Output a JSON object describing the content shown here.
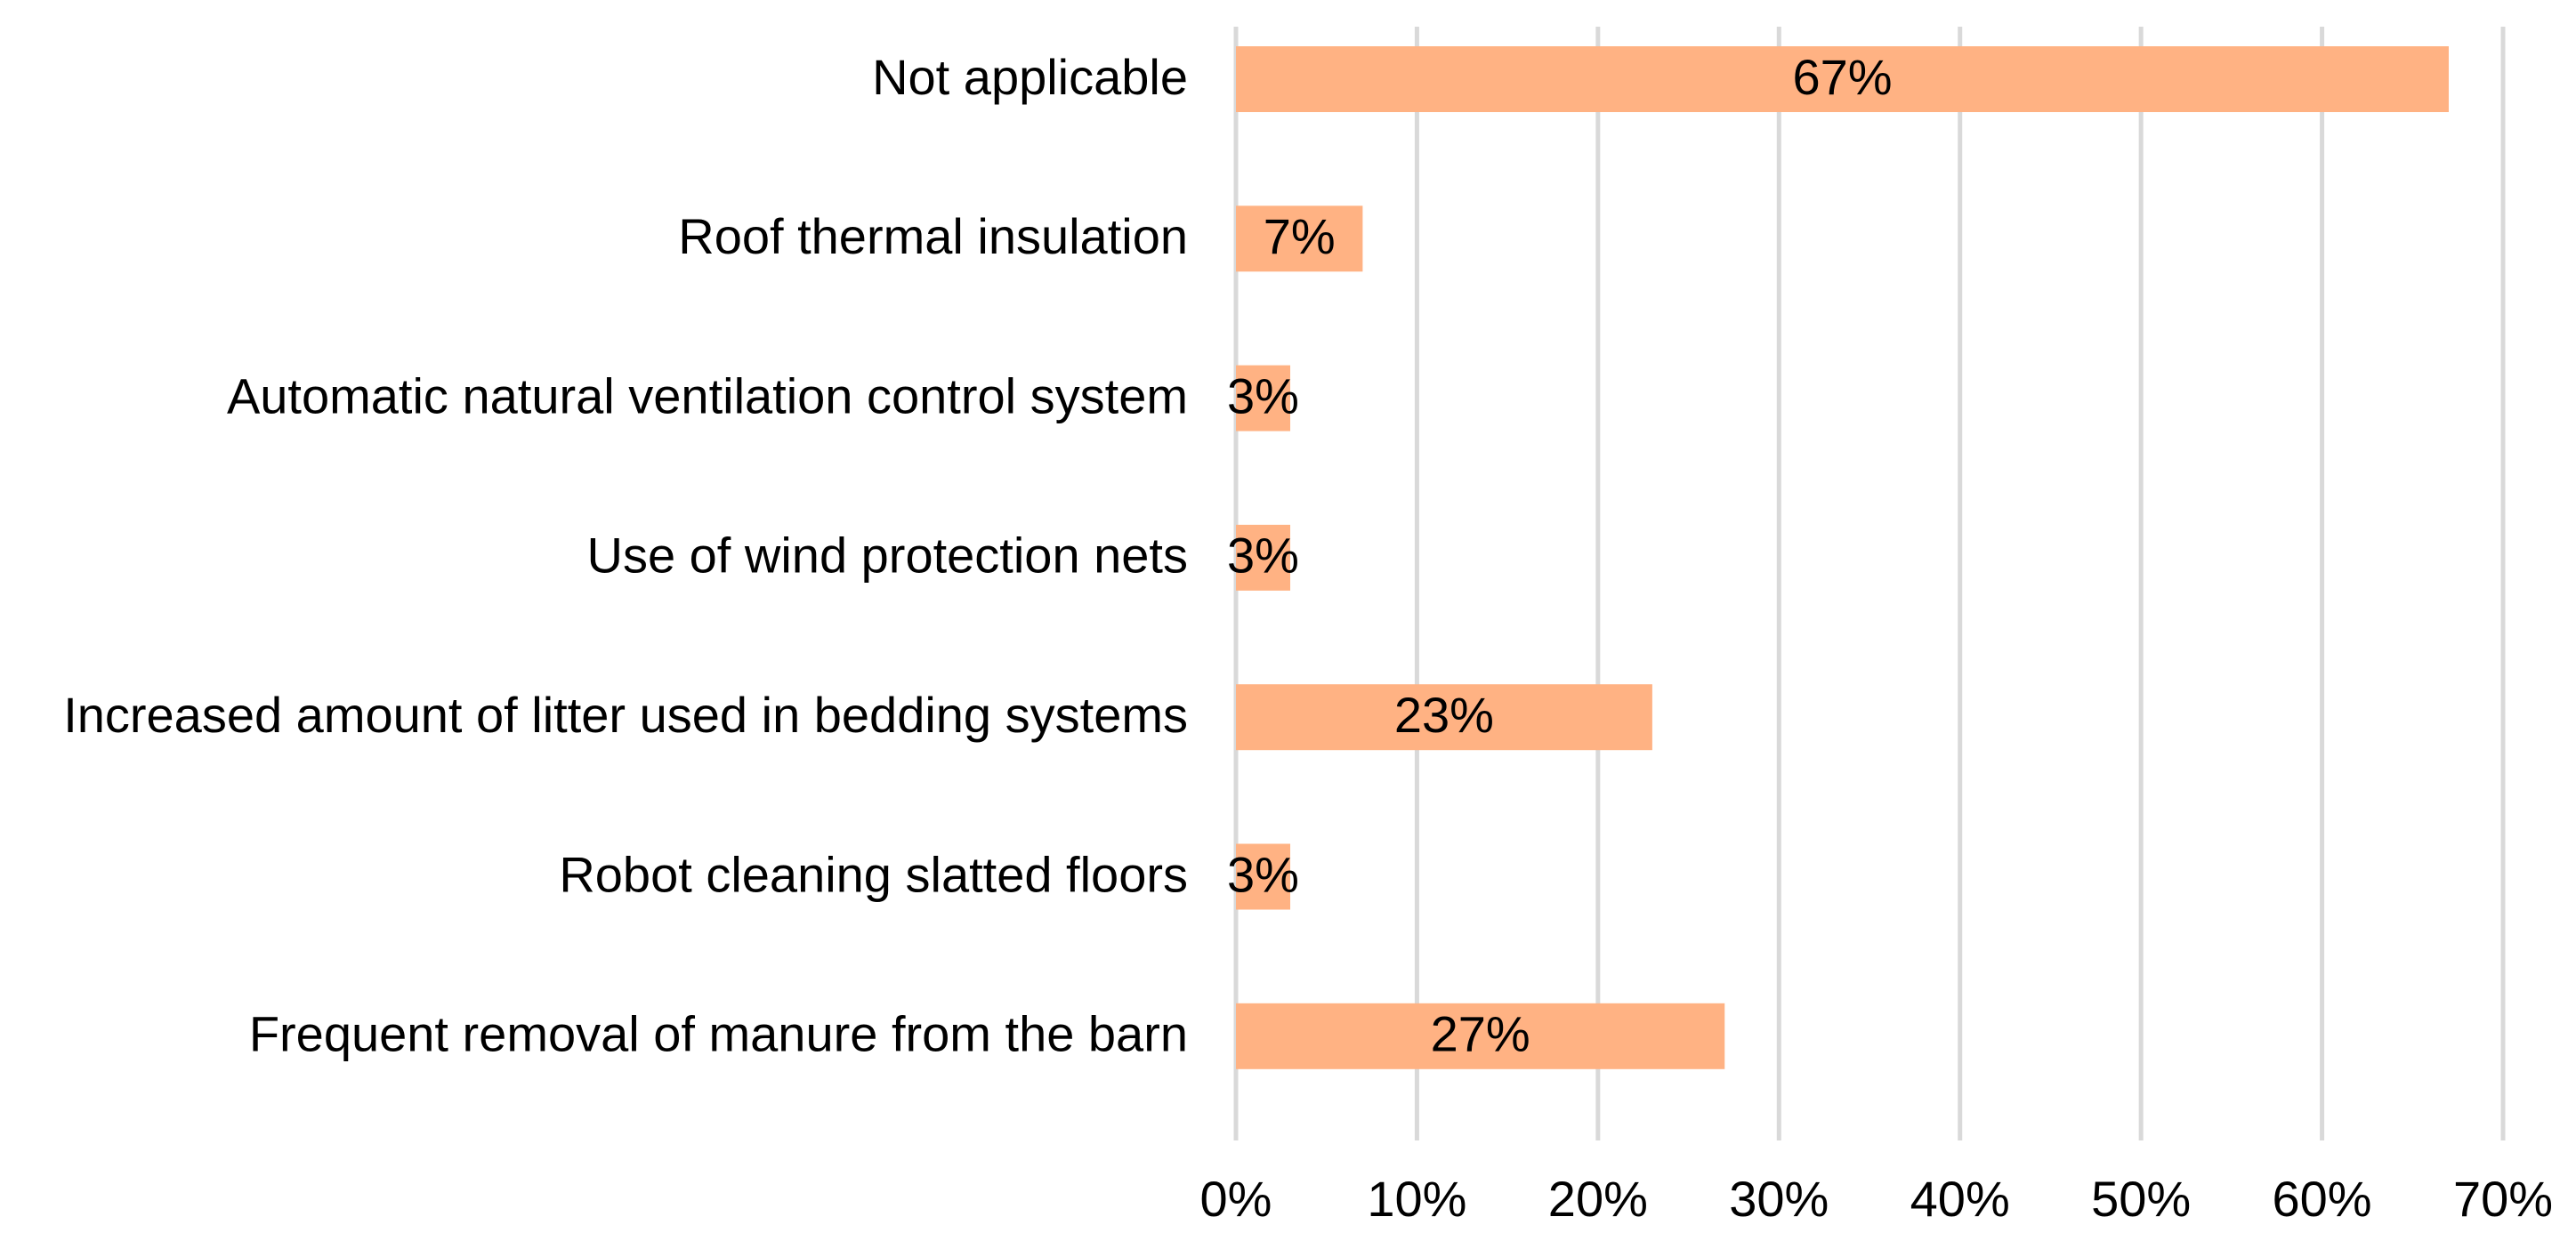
{
  "chart_data": {
    "type": "bar",
    "orientation": "horizontal",
    "categories": [
      "Not applicable",
      "Roof thermal insulation",
      "Automatic natural ventilation control system",
      "Use of wind protection nets",
      "Increased amount of litter used in bedding systems",
      "Robot cleaning slatted floors",
      "Frequent removal of manure from the barn"
    ],
    "values": [
      67,
      7,
      3,
      3,
      23,
      3,
      27
    ],
    "data_labels": [
      "67%",
      "7%",
      "3%",
      "3%",
      "23%",
      "3%",
      "27%"
    ],
    "xlim": [
      0,
      70
    ],
    "x_ticks": [
      0,
      10,
      20,
      30,
      40,
      50,
      60,
      70
    ],
    "x_tick_labels": [
      "0%",
      "10%",
      "20%",
      "30%",
      "40%",
      "50%",
      "60%",
      "70%"
    ],
    "grid": "vertical",
    "legend": "none",
    "colors": {
      "bar": "#FFB283",
      "grid": "#D9D9D9",
      "text": "#000000"
    }
  }
}
